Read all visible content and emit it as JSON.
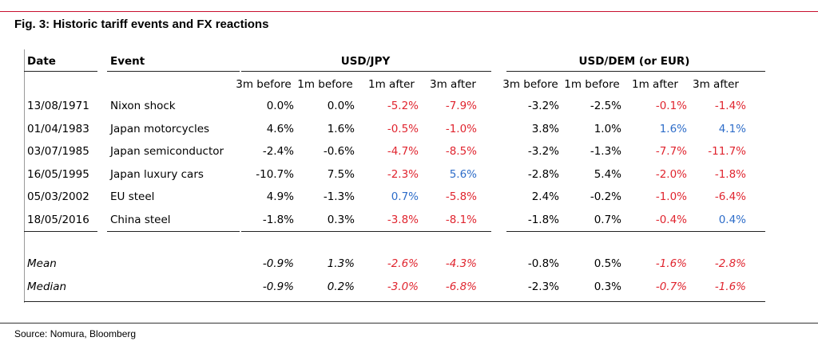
{
  "title": "Fig. 3: Historic tariff events and FX reactions",
  "source": "Source: Nomura, Bloomberg",
  "headers": {
    "date": "Date",
    "event": "Event",
    "group1": "USD/JPY",
    "group2": "USD/DEM (or EUR)",
    "sub": [
      "3m before",
      "1m before",
      "1m after",
      "3m after",
      "3m before",
      "1m before",
      "1m after",
      "3m after"
    ]
  },
  "rows": [
    {
      "date": "13/08/1971",
      "event": "Nixon shock",
      "values": [
        "0.0%",
        "0.0%",
        "-5.2%",
        "-7.9%",
        "-3.2%",
        "-2.5%",
        "-0.1%",
        "-1.4%"
      ],
      "colors": [
        "",
        "",
        "neg",
        "neg",
        "",
        "",
        "neg",
        "neg"
      ]
    },
    {
      "date": "01/04/1983",
      "event": "Japan motorcycles",
      "values": [
        "4.6%",
        "1.6%",
        "-0.5%",
        "-1.0%",
        "3.8%",
        "1.0%",
        "1.6%",
        "4.1%"
      ],
      "colors": [
        "",
        "",
        "neg",
        "neg",
        "",
        "",
        "pos",
        "pos"
      ]
    },
    {
      "date": "03/07/1985",
      "event": "Japan semiconductor",
      "values": [
        "-2.4%",
        "-0.6%",
        "-4.7%",
        "-8.5%",
        "-3.2%",
        "-1.3%",
        "-7.7%",
        "-11.7%"
      ],
      "colors": [
        "",
        "",
        "neg",
        "neg",
        "",
        "",
        "neg",
        "neg"
      ]
    },
    {
      "date": "16/05/1995",
      "event": "Japan luxury cars",
      "values": [
        "-10.7%",
        "7.5%",
        "-2.3%",
        "5.6%",
        "-2.8%",
        "5.4%",
        "-2.0%",
        "-1.8%"
      ],
      "colors": [
        "",
        "",
        "neg",
        "pos",
        "",
        "",
        "neg",
        "neg"
      ]
    },
    {
      "date": "05/03/2002",
      "event": "EU steel",
      "values": [
        "4.9%",
        "-1.3%",
        "0.7%",
        "-5.8%",
        "2.4%",
        "-0.2%",
        "-1.0%",
        "-6.4%"
      ],
      "colors": [
        "",
        "",
        "pos",
        "neg",
        "",
        "",
        "neg",
        "neg"
      ]
    },
    {
      "date": "18/05/2016",
      "event": "China steel",
      "values": [
        "-1.8%",
        "0.3%",
        "-3.8%",
        "-8.1%",
        "-1.8%",
        "0.7%",
        "-0.4%",
        "0.4%"
      ],
      "colors": [
        "",
        "",
        "neg",
        "neg",
        "",
        "",
        "neg",
        "pos"
      ]
    }
  ],
  "summary": [
    {
      "label": "Mean",
      "values": [
        "-0.9%",
        "1.3%",
        "-2.6%",
        "-4.3%",
        "-0.8%",
        "0.5%",
        "-1.6%",
        "-2.8%"
      ],
      "colors": [
        "",
        "",
        "neg",
        "neg",
        "",
        "",
        "neg",
        "neg"
      ],
      "italic": [
        true,
        true,
        true,
        true,
        false,
        false,
        true,
        true
      ]
    },
    {
      "label": "Median",
      "values": [
        "-0.9%",
        "0.2%",
        "-3.0%",
        "-6.8%",
        "-2.3%",
        "0.3%",
        "-0.7%",
        "-1.6%"
      ],
      "colors": [
        "",
        "",
        "neg",
        "neg",
        "",
        "",
        "neg",
        "neg"
      ],
      "italic": [
        true,
        true,
        true,
        true,
        false,
        false,
        true,
        true
      ]
    }
  ],
  "colors": {
    "negative": "#e0252f",
    "positive": "#2e6dc9",
    "top_rule": "#c8102e"
  }
}
